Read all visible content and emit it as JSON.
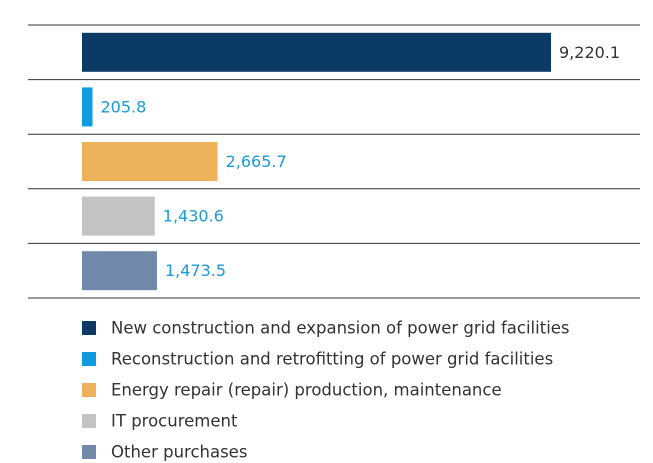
{
  "chart_data": {
    "type": "bar",
    "orientation": "horizontal",
    "categories": [
      "New construction and expansion of power grid facilities",
      "Reconstruction and retrofitting of power grid facilities",
      "Energy repair (repair) production, maintenance",
      "IT procurement",
      "Other purchases"
    ],
    "values": [
      9220.1,
      205.8,
      2665.7,
      1430.6,
      1473.5
    ],
    "value_labels": [
      "9,220.1",
      "205.8",
      "2,665.7",
      "1,430.6",
      "1,473.5"
    ],
    "colors": [
      "#0b3a64",
      "#0f9be0",
      "#eeb25c",
      "#c3c3c3",
      "#7089aa"
    ],
    "value_label_colors": [
      "#333333",
      "#1a9ad6",
      "#1a9ad6",
      "#1a9ad6",
      "#1a9ad6"
    ],
    "legend": true
  }
}
